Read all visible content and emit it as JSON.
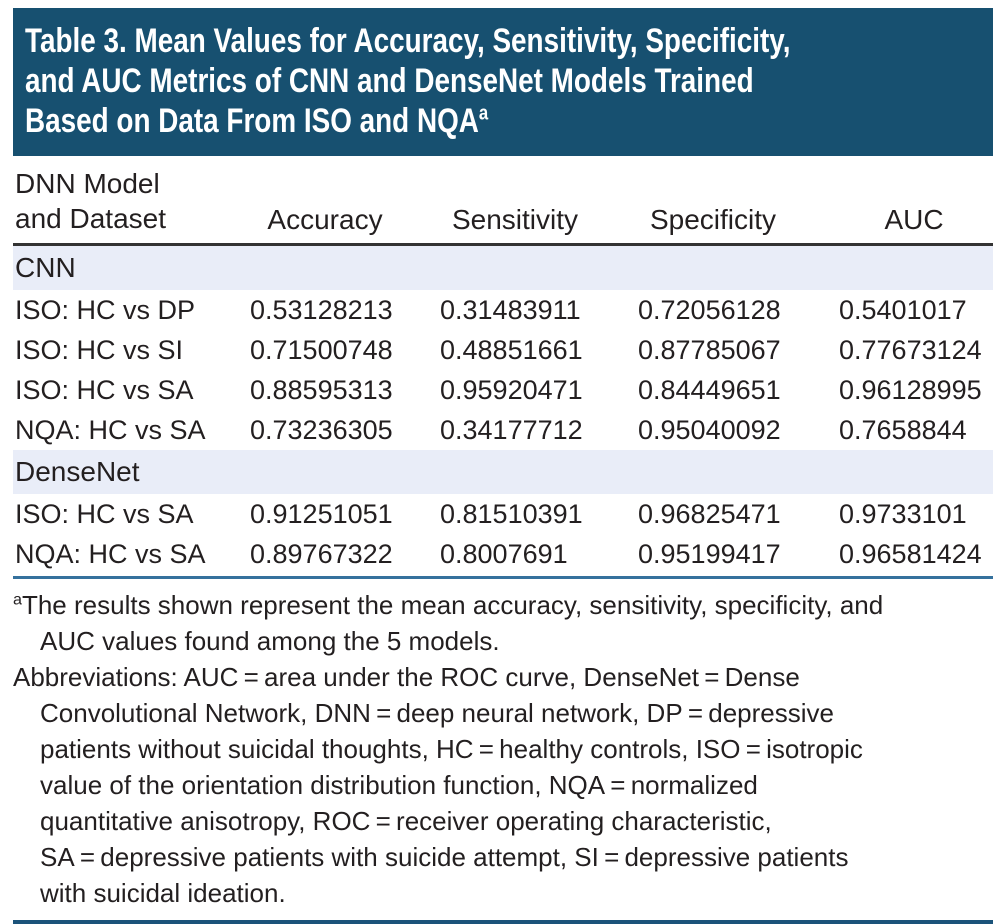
{
  "title": {
    "lines": [
      "Table 3. Mean Values for Accuracy, Sensitivity, Specificity,",
      "and AUC Metrics of CNN and DenseNet Models Trained",
      "Based on Data From ISO and NQA"
    ],
    "superscript": "a"
  },
  "table": {
    "header": {
      "col1": "DNN Model\nand Dataset",
      "metrics": [
        "Accuracy",
        "Sensitivity",
        "Specificity",
        "AUC"
      ]
    },
    "sections": [
      {
        "label": "CNN",
        "rows": [
          {
            "dataset": "ISO: HC vs DP",
            "accuracy": "0.53128213",
            "sensitivity": "0.31483911",
            "specificity": "0.72056128",
            "auc": "0.5401017"
          },
          {
            "dataset": "ISO: HC vs SI",
            "accuracy": "0.71500748",
            "sensitivity": "0.48851661",
            "specificity": "0.87785067",
            "auc": "0.77673124"
          },
          {
            "dataset": "ISO: HC vs SA",
            "accuracy": "0.88595313",
            "sensitivity": "0.95920471",
            "specificity": "0.84449651",
            "auc": "0.96128995"
          },
          {
            "dataset": "NQA: HC vs SA",
            "accuracy": "0.73236305",
            "sensitivity": "0.34177712",
            "specificity": "0.95040092",
            "auc": "0.7658844"
          }
        ]
      },
      {
        "label": "DenseNet",
        "rows": [
          {
            "dataset": "ISO: HC vs SA",
            "accuracy": "0.91251051",
            "sensitivity": "0.81510391",
            "specificity": "0.96825471",
            "auc": "0.9733101"
          },
          {
            "dataset": "NQA: HC vs SA",
            "accuracy": "0.89767322",
            "sensitivity": "0.8007691",
            "specificity": "0.95199417",
            "auc": "0.96581424"
          }
        ]
      }
    ]
  },
  "footnotes": {
    "a": {
      "marker": "a",
      "lines": [
        "The results shown represent the mean accuracy, sensitivity, specificity, and",
        "AUC values found among the 5 models."
      ]
    },
    "abbreviations": {
      "lines": [
        "Abbreviations: AUC = area under the ROC curve, DenseNet = Dense",
        "Convolutional Network, DNN = deep neural network, DP = depressive",
        "patients without suicidal thoughts, HC = healthy controls, ISO = isotropic",
        "value of the orientation distribution function, NQA = normalized",
        "quantitative anisotropy, ROC = receiver operating characteristic,",
        "SA = depressive patients with suicide attempt, SI = depressive patients",
        "with suicidal ideation."
      ]
    }
  },
  "colors": {
    "title_bg": "#175070",
    "title_text": "#ffffff",
    "section_row_bg": "#e9edf8",
    "header_rule": "#333333",
    "mid_rule": "#35719d",
    "bottom_rule": "#1b537a",
    "body_text": "#231f20"
  }
}
